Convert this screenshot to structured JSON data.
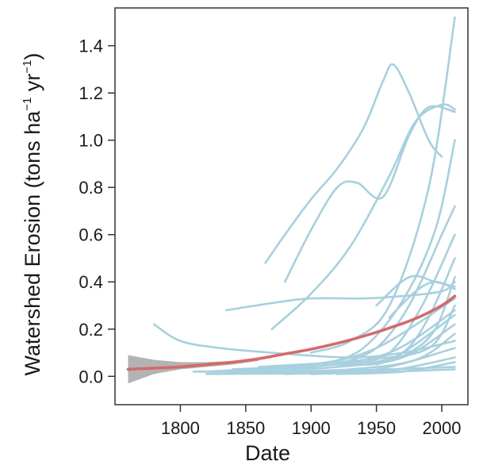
{
  "chart_data": {
    "type": "line",
    "title": "",
    "xlabel": "Date",
    "ylabel_parts": [
      "Watershed Erosion (tons ha",
      "−1",
      " yr",
      "−1",
      ")"
    ],
    "xlim": [
      1750,
      2020
    ],
    "ylim": [
      -0.12,
      1.56
    ],
    "x_ticks": [
      1800,
      1850,
      1900,
      1950,
      2000
    ],
    "x_tick_labels": [
      "1800",
      "1850",
      "1900",
      "1950",
      "2000"
    ],
    "y_ticks": [
      0.0,
      0.2,
      0.4,
      0.6,
      0.8,
      1.0,
      1.2,
      1.4
    ],
    "y_tick_labels": [
      "0.0",
      "0.2",
      "0.4",
      "0.6",
      "0.8",
      "1.0",
      "1.2",
      "1.4"
    ],
    "grid": false,
    "legend": "none",
    "colors": {
      "individual": "#a8d0de",
      "trend": "#d46a6a",
      "confidence_band": "#b3b3b3",
      "frame": "#333333"
    },
    "confidence_band": {
      "x": [
        1760,
        1780,
        1800,
        1820,
        1840,
        1860
      ],
      "upper": [
        0.09,
        0.07,
        0.06,
        0.06,
        0.065,
        0.075
      ],
      "lower": [
        -0.03,
        0.01,
        0.03,
        0.04,
        0.05,
        0.065
      ]
    },
    "trend_series": {
      "name": "",
      "x": [
        1760,
        1780,
        1800,
        1820,
        1840,
        1860,
        1880,
        1900,
        1920,
        1940,
        1960,
        1980,
        2000,
        2010
      ],
      "y": [
        0.03,
        0.035,
        0.04,
        0.05,
        0.06,
        0.075,
        0.095,
        0.115,
        0.14,
        0.17,
        0.205,
        0.245,
        0.3,
        0.34
      ]
    },
    "series": [
      {
        "x": [
          1865,
          1880,
          1900,
          1920,
          1940,
          1955,
          1963,
          1975,
          1990,
          2000
        ],
        "y": [
          0.48,
          0.6,
          0.75,
          0.88,
          1.05,
          1.25,
          1.32,
          1.2,
          1.0,
          0.93
        ]
      },
      {
        "x": [
          1880,
          1900,
          1920,
          1935,
          1955,
          1975,
          1990,
          2010
        ],
        "y": [
          0.4,
          0.62,
          0.8,
          0.82,
          0.76,
          1.02,
          1.14,
          1.12
        ]
      },
      {
        "x": [
          1870,
          1900,
          1930,
          1960,
          1980,
          2000,
          2010
        ],
        "y": [
          0.2,
          0.35,
          0.55,
          0.85,
          1.08,
          1.15,
          1.13
        ]
      },
      {
        "x": [
          1900,
          1930,
          1960,
          1990,
          2010
        ],
        "y": [
          0.1,
          0.15,
          0.3,
          0.8,
          1.52
        ]
      },
      {
        "x": [
          1910,
          1940,
          1970,
          1995,
          2010
        ],
        "y": [
          0.05,
          0.12,
          0.32,
          0.62,
          1.0
        ]
      },
      {
        "x": [
          1780,
          1800,
          1830,
          1870,
          1930,
          1970,
          2010
        ],
        "y": [
          0.22,
          0.15,
          0.12,
          0.1,
          0.08,
          0.1,
          0.15
        ]
      },
      {
        "x": [
          1835,
          1870,
          1900,
          1940,
          1970,
          2000,
          2010
        ],
        "y": [
          0.28,
          0.31,
          0.33,
          0.33,
          0.34,
          0.36,
          0.4
        ]
      },
      {
        "x": [
          1920,
          1950,
          1975,
          2000,
          2010
        ],
        "y": [
          0.05,
          0.12,
          0.3,
          0.6,
          0.72
        ]
      },
      {
        "x": [
          1930,
          1960,
          1985,
          2010
        ],
        "y": [
          0.05,
          0.1,
          0.3,
          0.6
        ]
      },
      {
        "x": [
          1940,
          1970,
          1990,
          2010
        ],
        "y": [
          0.05,
          0.1,
          0.25,
          0.5
        ]
      },
      {
        "x": [
          1950,
          1975,
          1995,
          2010
        ],
        "y": [
          0.05,
          0.1,
          0.2,
          0.42
        ]
      },
      {
        "x": [
          1820,
          1900,
          1950,
          2010
        ],
        "y": [
          0.02,
          0.05,
          0.12,
          0.33
        ]
      },
      {
        "x": [
          1830,
          1900,
          1960,
          2010
        ],
        "y": [
          0.02,
          0.04,
          0.1,
          0.28
        ]
      },
      {
        "x": [
          1850,
          1920,
          1970,
          2010
        ],
        "y": [
          0.02,
          0.04,
          0.08,
          0.22
        ]
      },
      {
        "x": [
          1870,
          1930,
          1980,
          2010
        ],
        "y": [
          0.02,
          0.03,
          0.07,
          0.18
        ]
      },
      {
        "x": [
          1880,
          1950,
          2010
        ],
        "y": [
          0.01,
          0.03,
          0.12
        ]
      },
      {
        "x": [
          1900,
          1960,
          2010
        ],
        "y": [
          0.01,
          0.025,
          0.08
        ]
      },
      {
        "x": [
          1920,
          1970,
          2010
        ],
        "y": [
          0.01,
          0.02,
          0.06
        ]
      },
      {
        "x": [
          1810,
          1900,
          2010
        ],
        "y": [
          0.02,
          0.02,
          0.04
        ]
      },
      {
        "x": [
          1820,
          1930,
          2010
        ],
        "y": [
          0.01,
          0.015,
          0.03
        ]
      },
      {
        "x": [
          1840,
          1920,
          1960,
          2010
        ],
        "y": [
          0.03,
          0.05,
          0.07,
          0.26
        ]
      },
      {
        "x": [
          1860,
          1940,
          1990,
          2010
        ],
        "y": [
          0.04,
          0.07,
          0.12,
          0.3
        ]
      },
      {
        "x": [
          1950,
          1975,
          1995,
          2010
        ],
        "y": [
          0.3,
          0.42,
          0.4,
          0.38
        ]
      },
      {
        "x": [
          1960,
          1980,
          1995,
          2010
        ],
        "y": [
          0.25,
          0.36,
          0.4,
          0.37
        ]
      }
    ]
  }
}
